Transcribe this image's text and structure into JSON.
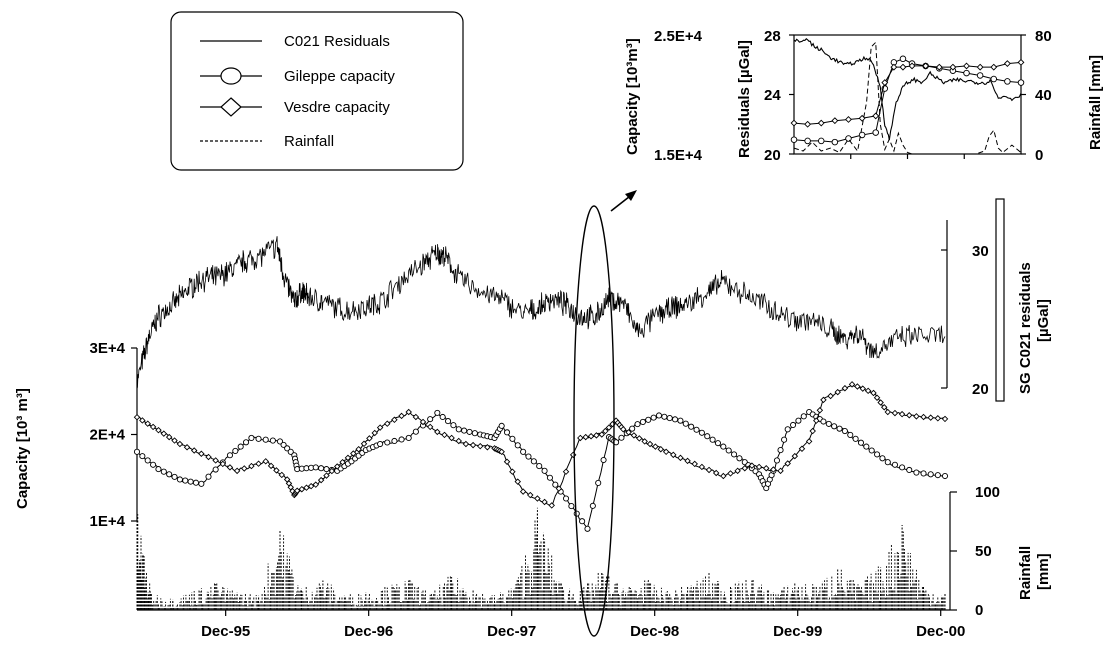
{
  "chart_data": [
    {
      "type": "line",
      "title": "",
      "legend": {
        "placement": "top-left",
        "entries": [
          {
            "label": "C021 Residuals",
            "style": "solid"
          },
          {
            "label": "Gileppe capacity",
            "style": "circle-marker"
          },
          {
            "label": "Vesdre capacity",
            "style": "diamond-marker"
          },
          {
            "label": "Rainfall",
            "style": "dashed"
          }
        ]
      },
      "x_ticks": [
        "Dec-95",
        "Dec-96",
        "Dec-97",
        "Dec-98",
        "Dec-99",
        "Dec-00"
      ],
      "x_tick_years": [
        1995.92,
        1996.92,
        1997.92,
        1998.92,
        1999.92,
        2000.92
      ],
      "x_range": [
        1995.3,
        2000.95
      ],
      "capacity_axis": {
        "label": "Capacity [10³ m³]",
        "ticks": [
          "1E+4",
          "2E+4",
          "3E+4"
        ],
        "tick_values": [
          10000,
          20000,
          30000
        ],
        "range": [
          10000,
          30000
        ]
      },
      "residuals_axis": {
        "label_line1": "SG C021 residuals",
        "label_line2": "[µGal]",
        "ticks": [
          "20",
          "30"
        ],
        "tick_values": [
          20,
          30
        ],
        "range": [
          20,
          32
        ]
      },
      "rainfall_axis": {
        "label_line1": "Rainfall",
        "label_line2": "[mm]",
        "ticks": [
          "0",
          "50",
          "100"
        ],
        "tick_values": [
          0,
          50,
          100
        ],
        "range": [
          0,
          100
        ]
      },
      "series": [
        {
          "name": "C021 Residuals",
          "x": [
            1995.3,
            1995.38,
            1995.45,
            1995.55,
            1995.65,
            1995.75,
            1995.85,
            1995.95,
            1996.05,
            1996.15,
            1996.28,
            1996.33,
            1996.4,
            1996.45,
            1996.5,
            1996.6,
            1996.75,
            1996.9,
            1997.0,
            1997.15,
            1997.3,
            1997.4,
            1997.45,
            1997.55,
            1997.7,
            1997.85,
            1998.0,
            1998.1,
            1998.2,
            1998.3,
            1998.4,
            1998.5,
            1998.6,
            1998.7,
            1998.8,
            1998.95,
            1999.05,
            1999.15,
            1999.3,
            1999.4,
            1999.55,
            1999.7,
            1999.85,
            2000.0,
            2000.15,
            2000.25,
            2000.35,
            2000.45,
            2000.6,
            2000.75,
            2000.95
          ],
          "y": [
            20.4,
            23.6,
            25.2,
            26.0,
            27.1,
            27.9,
            28.0,
            28.5,
            29.2,
            29.5,
            30.3,
            28.0,
            26.2,
            27.0,
            26.6,
            26.2,
            25.6,
            25.9,
            26.2,
            27.8,
            29.0,
            29.8,
            29.5,
            28.0,
            27.0,
            26.4,
            25.4,
            25.7,
            26.5,
            26.0,
            25.2,
            25.1,
            26.4,
            26.2,
            24.0,
            25.4,
            25.8,
            26.1,
            27.0,
            27.7,
            26.8,
            26.0,
            25.1,
            24.9,
            24.2,
            23.6,
            24.0,
            22.6,
            23.5,
            23.8,
            23.7
          ]
        },
        {
          "name": "Gileppe capacity",
          "x": [
            1995.3,
            1995.45,
            1995.6,
            1995.75,
            1995.95,
            1996.1,
            1996.3,
            1996.4,
            1996.42,
            1996.55,
            1996.7,
            1996.8,
            1996.9,
            1997.0,
            1997.2,
            1997.4,
            1997.55,
            1997.7,
            1997.8,
            1997.85,
            1998.0,
            1998.15,
            1998.3,
            1998.45,
            1998.6,
            1998.65,
            1998.8,
            1998.95,
            1999.1,
            1999.25,
            1999.4,
            1999.55,
            1999.65,
            1999.7,
            1999.75,
            1999.85,
            2000.0,
            2000.1,
            2000.25,
            2000.4,
            2000.55,
            2000.75,
            2000.95
          ],
          "y": [
            18000,
            16000,
            14800,
            14300,
            17600,
            19600,
            19200,
            17600,
            16000,
            16200,
            15800,
            16900,
            18200,
            18900,
            19600,
            22500,
            20600,
            20000,
            19600,
            21000,
            18000,
            15800,
            12600,
            9100,
            19700,
            19100,
            21200,
            22200,
            21600,
            20200,
            18600,
            16800,
            15400,
            13800,
            15800,
            20600,
            22600,
            21500,
            20400,
            18600,
            16800,
            15600,
            15200
          ]
        },
        {
          "name": "Vesdre capacity",
          "x": [
            1995.3,
            1995.45,
            1995.6,
            1995.8,
            1996.0,
            1996.2,
            1996.35,
            1996.4,
            1996.42,
            1996.55,
            1996.7,
            1996.85,
            1997.0,
            1997.2,
            1997.4,
            1997.6,
            1997.8,
            1997.85,
            1998.0,
            1998.2,
            1998.4,
            1998.55,
            1998.65,
            1998.7,
            1998.85,
            1999.0,
            1999.2,
            1999.4,
            1999.6,
            1999.8,
            2000.0,
            2000.1,
            2000.3,
            2000.45,
            2000.55,
            2000.75,
            2000.95
          ],
          "y": [
            22000,
            20500,
            18900,
            17400,
            15800,
            16900,
            14800,
            13000,
            13500,
            14200,
            16300,
            18300,
            20800,
            22600,
            20300,
            18900,
            18400,
            18000,
            13400,
            11800,
            19600,
            20000,
            21600,
            20600,
            19200,
            18000,
            16600,
            15200,
            16400,
            15800,
            19200,
            24000,
            25800,
            24800,
            22600,
            22100,
            21800
          ]
        },
        {
          "name": "Rainfall",
          "x": [
            1995.3,
            1995.4,
            1995.55,
            1995.7,
            1995.85,
            1996.0,
            1996.15,
            1996.3,
            1996.45,
            1996.6,
            1996.75,
            1996.9,
            1997.05,
            1997.2,
            1997.35,
            1997.5,
            1997.65,
            1997.8,
            1997.95,
            1998.1,
            1998.25,
            1998.4,
            1998.55,
            1998.7,
            1998.85,
            1999.0,
            1999.15,
            1999.3,
            1999.45,
            1999.6,
            1999.75,
            1999.9,
            2000.05,
            2000.2,
            2000.35,
            2000.5,
            2000.65,
            2000.8,
            2000.95
          ],
          "y": [
            83,
            14,
            9,
            16,
            22,
            15,
            12,
            68,
            18,
            25,
            12,
            15,
            19,
            25,
            13,
            28,
            17,
            12,
            22,
            82,
            24,
            16,
            32,
            18,
            25,
            15,
            20,
            30,
            20,
            25,
            15,
            23,
            20,
            35,
            20,
            36,
            72,
            20,
            14
          ]
        }
      ]
    },
    {
      "type": "line",
      "title": "",
      "placement": "inset-top-right",
      "axes": {
        "capacity_label": "Capacity [10³m³]",
        "capacity_ticks": [
          "1.5E+4",
          "2.5E+4"
        ],
        "residuals_label": "Residuals [µGal]",
        "residuals_ticks": [
          "20",
          "24",
          "28"
        ],
        "rainfall_label": "Rainfall [mm]",
        "rainfall_ticks": [
          "0",
          "40",
          "80"
        ]
      },
      "series": [
        {
          "name": "C021 Residuals",
          "x": [
            0,
            3,
            6,
            9,
            12,
            15,
            17,
            20,
            23,
            26,
            29,
            32,
            35,
            38,
            40,
            42,
            45,
            48,
            50,
            53,
            56,
            60,
            63,
            66,
            69,
            72,
            75,
            78,
            81,
            84,
            87,
            90,
            93,
            96,
            100
          ],
          "y": [
            27.6,
            27.6,
            27.7,
            27.2,
            27.0,
            26.6,
            26.4,
            26.2,
            26.0,
            26.1,
            26.3,
            26.5,
            26.0,
            24.5,
            22.0,
            21.0,
            23.5,
            24.5,
            24.8,
            25.0,
            24.8,
            25.4,
            25.1,
            24.8,
            24.9,
            25.0,
            24.9,
            24.9,
            24.8,
            24.8,
            24.9,
            23.7,
            23.9,
            23.7,
            24.0
          ]
        },
        {
          "name": "Gileppe capacity",
          "x": [
            0,
            6,
            12,
            18,
            24,
            30,
            36,
            40,
            44,
            48,
            52,
            58,
            64,
            70,
            76,
            82,
            88,
            94,
            100
          ],
          "y": [
            16200,
            16100,
            16100,
            16000,
            16300,
            16600,
            16800,
            20500,
            22700,
            23000,
            22600,
            22400,
            22200,
            22000,
            21800,
            21600,
            21300,
            21100,
            21000
          ]
        },
        {
          "name": "Vesdre capacity",
          "x": [
            0,
            6,
            12,
            18,
            24,
            30,
            36,
            40,
            44,
            48,
            52,
            58,
            64,
            70,
            76,
            82,
            88,
            94,
            100
          ],
          "y": [
            17600,
            17500,
            17600,
            17800,
            17900,
            18000,
            18200,
            21000,
            22300,
            22300,
            22400,
            22400,
            22300,
            22300,
            22400,
            22300,
            22300,
            22600,
            22700
          ]
        },
        {
          "name": "Rainfall",
          "x": [
            0,
            4,
            8,
            12,
            16,
            20,
            24,
            28,
            32,
            34,
            36,
            38,
            40,
            42,
            44,
            46,
            48,
            50,
            52,
            56,
            60,
            64,
            68,
            72,
            76,
            80,
            84,
            86,
            88,
            90,
            92,
            96,
            100
          ],
          "y": [
            4,
            2,
            8,
            2,
            4,
            1,
            10,
            2,
            35,
            72,
            75,
            20,
            3,
            10,
            2,
            14,
            6,
            1,
            0,
            0,
            0,
            0,
            0,
            0,
            0,
            0,
            2,
            12,
            16,
            4,
            1,
            6,
            1
          ]
        }
      ]
    }
  ]
}
